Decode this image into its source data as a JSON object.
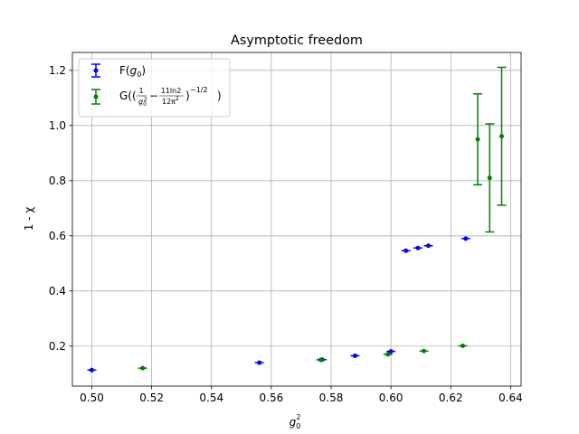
{
  "chart_data": {
    "type": "scatter",
    "title": "Asymptotic freedom",
    "xlabel": {
      "base": "g",
      "sub": "0",
      "sup": "2"
    },
    "ylabel": "1 - χ",
    "xlim": [
      0.4935,
      0.6435
    ],
    "ylim": [
      0.055,
      1.265
    ],
    "x_ticks": [
      0.5,
      0.52,
      0.54,
      0.56,
      0.58,
      0.6,
      0.62,
      0.64
    ],
    "x_tick_labels": [
      "0.50",
      "0.52",
      "0.54",
      "0.56",
      "0.58",
      "0.60",
      "0.62",
      "0.64"
    ],
    "y_ticks": [
      0.2,
      0.4,
      0.6,
      0.8,
      1.0,
      1.2
    ],
    "y_tick_labels": [
      "0.2",
      "0.4",
      "0.6",
      "0.8",
      "1.0",
      "1.2"
    ],
    "grid": true,
    "legend_position": "upper-left",
    "series": [
      {
        "name": "F(g0)",
        "color": "#0000ff",
        "points": [
          {
            "x": 0.5,
            "y": 0.113,
            "xerr": 0.0015,
            "yerr": 0.0
          },
          {
            "x": 0.556,
            "y": 0.14,
            "xerr": 0.0015,
            "yerr": 0.0
          },
          {
            "x": 0.577,
            "y": 0.151,
            "xerr": 0.0015,
            "yerr": 0.0
          },
          {
            "x": 0.588,
            "y": 0.165,
            "xerr": 0.0015,
            "yerr": 0.0
          },
          {
            "x": 0.6,
            "y": 0.181,
            "xerr": 0.0015,
            "yerr": 0.0
          },
          {
            "x": 0.605,
            "y": 0.546,
            "xerr": 0.0015,
            "yerr": 0.0
          },
          {
            "x": 0.609,
            "y": 0.556,
            "xerr": 0.0015,
            "yerr": 0.0
          },
          {
            "x": 0.6125,
            "y": 0.564,
            "xerr": 0.0015,
            "yerr": 0.0
          },
          {
            "x": 0.625,
            "y": 0.59,
            "xerr": 0.0015,
            "yerr": 0.0
          }
        ]
      },
      {
        "name": "G((1/g0² − 11ln2/12π²)^(−1/2))",
        "color": "#008000",
        "points": [
          {
            "x": 0.517,
            "y": 0.12,
            "xerr": 0.0015,
            "yerr": 0.0
          },
          {
            "x": 0.5765,
            "y": 0.15,
            "xerr": 0.0015,
            "yerr": 0.0
          },
          {
            "x": 0.599,
            "y": 0.17,
            "xerr": 0.0015,
            "yerr": 0.0
          },
          {
            "x": 0.611,
            "y": 0.182,
            "xerr": 0.0015,
            "yerr": 0.0
          },
          {
            "x": 0.624,
            "y": 0.201,
            "xerr": 0.0015,
            "yerr": 0.0
          },
          {
            "x": 0.629,
            "y": 0.95,
            "xerr": 0.0,
            "yerr": 0.165
          },
          {
            "x": 0.633,
            "y": 0.81,
            "xerr": 0.0,
            "yerr": 0.196
          },
          {
            "x": 0.637,
            "y": 0.961,
            "xerr": 0.0,
            "yerr": 0.25
          }
        ]
      }
    ],
    "legend": {
      "f_label": {
        "prefix": "F(",
        "var": "g",
        "sub": "0",
        "suffix": ")"
      },
      "g_label": {
        "prefix": "G((",
        "frac1_num": "1",
        "frac1_den": "g",
        "frac1_den_sub": "0",
        "frac1_den_sup": "2",
        "minus": "−",
        "frac2_num": "11ln2",
        "frac2_den": "12π",
        "frac2_den_sup": "2",
        "suffix": ")",
        "exponent": "−1/2",
        "close": ")"
      }
    }
  }
}
